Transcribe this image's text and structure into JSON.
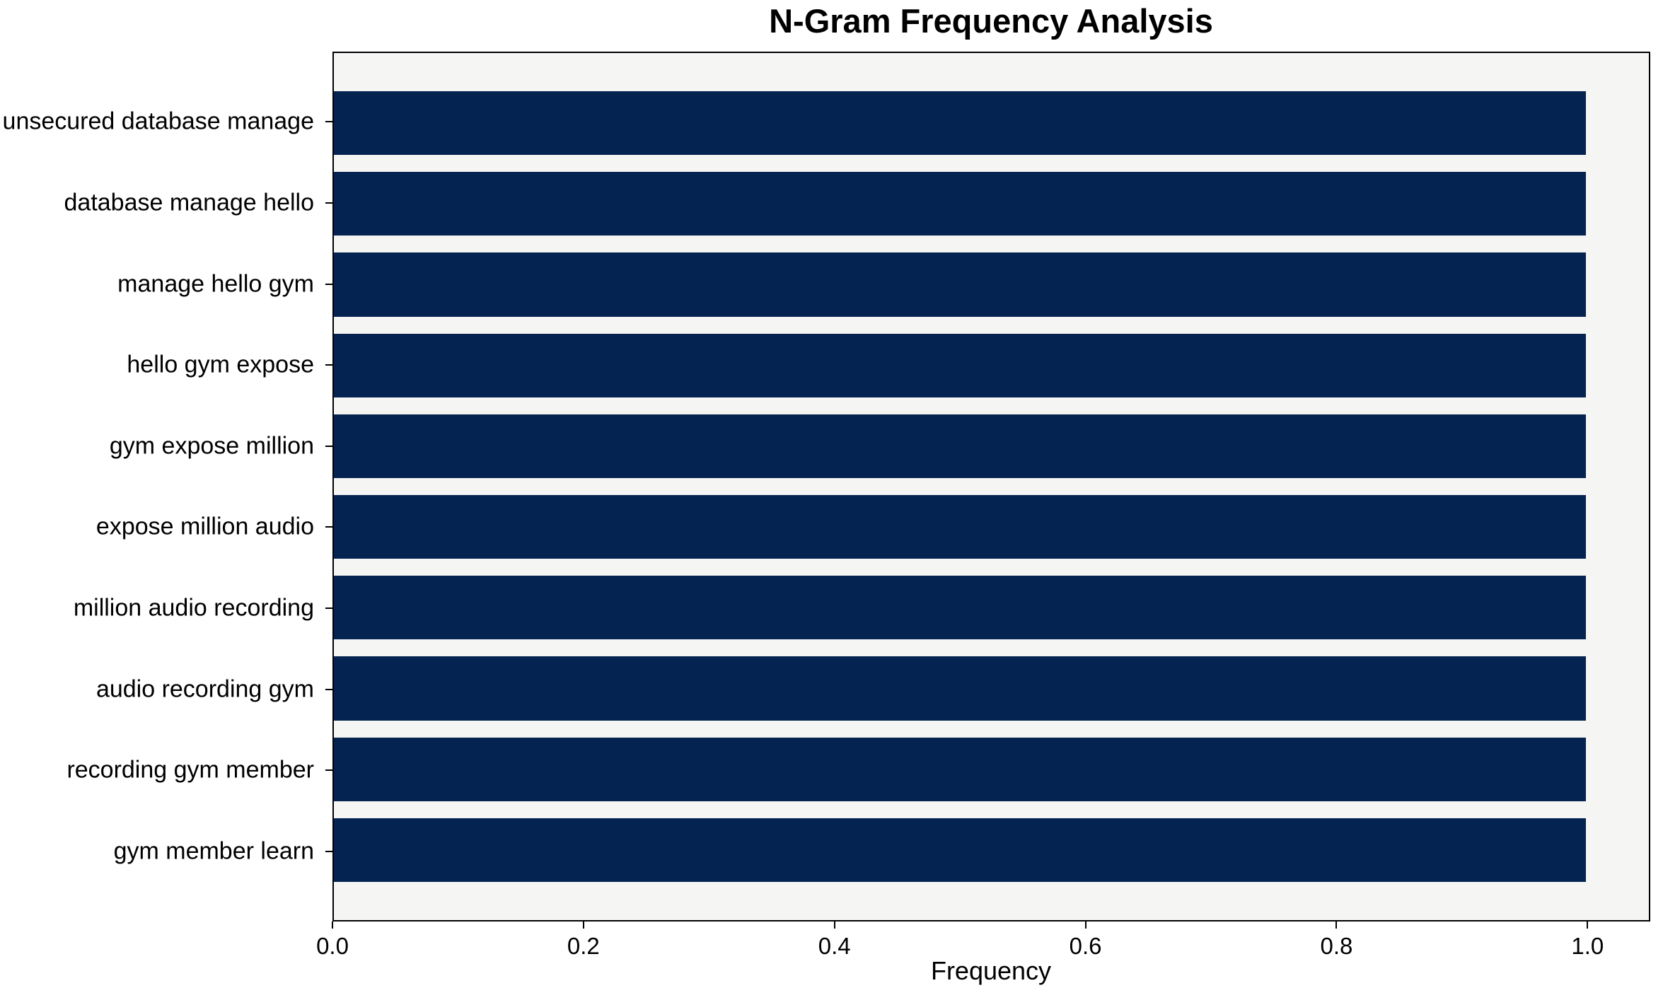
{
  "chart_data": {
    "type": "bar",
    "orientation": "horizontal",
    "title": "N-Gram Frequency Analysis",
    "xlabel": "Frequency",
    "ylabel": "",
    "categories": [
      "unsecured database manage",
      "database manage hello",
      "manage hello gym",
      "hello gym expose",
      "gym expose million",
      "expose million audio",
      "million audio recording",
      "audio recording gym",
      "recording gym member",
      "gym member learn"
    ],
    "values": [
      1.0,
      1.0,
      1.0,
      1.0,
      1.0,
      1.0,
      1.0,
      1.0,
      1.0,
      1.0
    ],
    "xlim": [
      0,
      1.05
    ],
    "xticks": [
      0.0,
      0.2,
      0.4,
      0.6,
      0.8,
      1.0
    ],
    "xtick_labels": [
      "0.0",
      "0.2",
      "0.4",
      "0.6",
      "0.8",
      "1.0"
    ],
    "grid": false,
    "legend": "none",
    "colors": {
      "bar": "#052350",
      "plot_background": "#f5f5f4",
      "figure_background": "#ffffff",
      "text": "#000000",
      "spine": "#000000"
    }
  }
}
